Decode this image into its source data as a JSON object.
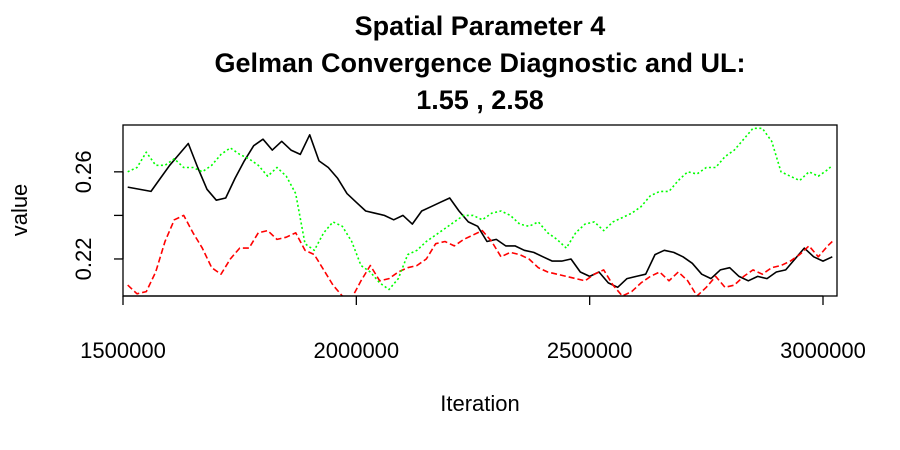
{
  "chart_data": {
    "type": "line",
    "title_lines": [
      "Spatial Parameter 4",
      "Gelman Convergence Diagnostic and UL:",
      "1.55 ,  2.58"
    ],
    "xlabel": "Iteration",
    "ylabel": "value",
    "xlim": [
      1500000,
      3030000
    ],
    "ylim": [
      0.203,
      0.2815
    ],
    "x_ticks": [
      1500000,
      2000000,
      2500000,
      3000000
    ],
    "x_tick_labels": [
      "1500000",
      "2000000",
      "2500000",
      "3000000"
    ],
    "y_ticks": [
      0.22,
      0.24,
      0.26
    ],
    "y_tick_labels": [
      "0.22",
      "",
      "0.26"
    ],
    "grid": false,
    "legend": "none",
    "series": [
      {
        "color": "#000000",
        "dash": "none",
        "points": [
          [
            1510000,
            0.253
          ],
          [
            1560000,
            0.251
          ],
          [
            1580000,
            0.257
          ],
          [
            1600000,
            0.263
          ],
          [
            1620000,
            0.268
          ],
          [
            1640000,
            0.273
          ],
          [
            1660000,
            0.262
          ],
          [
            1680000,
            0.252
          ],
          [
            1700000,
            0.247
          ],
          [
            1720000,
            0.248
          ],
          [
            1740000,
            0.257
          ],
          [
            1760000,
            0.265
          ],
          [
            1780000,
            0.272
          ],
          [
            1800000,
            0.275
          ],
          [
            1820000,
            0.27
          ],
          [
            1840000,
            0.274
          ],
          [
            1860000,
            0.27
          ],
          [
            1880000,
            0.268
          ],
          [
            1900000,
            0.277
          ],
          [
            1920000,
            0.265
          ],
          [
            1940000,
            0.262
          ],
          [
            1960000,
            0.257
          ],
          [
            1980000,
            0.25
          ],
          [
            2000000,
            0.246
          ],
          [
            2020000,
            0.242
          ],
          [
            2040000,
            0.241
          ],
          [
            2060000,
            0.24
          ],
          [
            2080000,
            0.238
          ],
          [
            2100000,
            0.24
          ],
          [
            2120000,
            0.236
          ],
          [
            2140000,
            0.242
          ],
          [
            2160000,
            0.244
          ],
          [
            2180000,
            0.246
          ],
          [
            2200000,
            0.248
          ],
          [
            2220000,
            0.242
          ],
          [
            2240000,
            0.237
          ],
          [
            2260000,
            0.235
          ],
          [
            2280000,
            0.228
          ],
          [
            2300000,
            0.229
          ],
          [
            2320000,
            0.226
          ],
          [
            2340000,
            0.226
          ],
          [
            2360000,
            0.224
          ],
          [
            2380000,
            0.223
          ],
          [
            2400000,
            0.221
          ],
          [
            2420000,
            0.219
          ],
          [
            2440000,
            0.219
          ],
          [
            2460000,
            0.22
          ],
          [
            2480000,
            0.214
          ],
          [
            2500000,
            0.212
          ],
          [
            2520000,
            0.214
          ],
          [
            2540000,
            0.209
          ],
          [
            2560000,
            0.207
          ],
          [
            2580000,
            0.211
          ],
          [
            2600000,
            0.212
          ],
          [
            2620000,
            0.213
          ],
          [
            2640000,
            0.222
          ],
          [
            2660000,
            0.224
          ],
          [
            2680000,
            0.223
          ],
          [
            2700000,
            0.221
          ],
          [
            2720000,
            0.218
          ],
          [
            2740000,
            0.213
          ],
          [
            2760000,
            0.211
          ],
          [
            2780000,
            0.215
          ],
          [
            2800000,
            0.216
          ],
          [
            2820000,
            0.212
          ],
          [
            2840000,
            0.21
          ],
          [
            2860000,
            0.212
          ],
          [
            2880000,
            0.211
          ],
          [
            2900000,
            0.214
          ],
          [
            2920000,
            0.215
          ],
          [
            2940000,
            0.22
          ],
          [
            2960000,
            0.225
          ],
          [
            2980000,
            0.221
          ],
          [
            3000000,
            0.219
          ],
          [
            3020000,
            0.221
          ]
        ]
      },
      {
        "color": "#ff0000",
        "dash": "dashed",
        "points": [
          [
            1510000,
            0.208
          ],
          [
            1530000,
            0.204
          ],
          [
            1550000,
            0.205
          ],
          [
            1570000,
            0.214
          ],
          [
            1590000,
            0.228
          ],
          [
            1610000,
            0.238
          ],
          [
            1630000,
            0.24
          ],
          [
            1650000,
            0.232
          ],
          [
            1670000,
            0.225
          ],
          [
            1690000,
            0.216
          ],
          [
            1710000,
            0.213
          ],
          [
            1730000,
            0.22
          ],
          [
            1750000,
            0.225
          ],
          [
            1770000,
            0.225
          ],
          [
            1790000,
            0.232
          ],
          [
            1810000,
            0.233
          ],
          [
            1830000,
            0.229
          ],
          [
            1850000,
            0.23
          ],
          [
            1870000,
            0.232
          ],
          [
            1890000,
            0.224
          ],
          [
            1910000,
            0.222
          ],
          [
            1930000,
            0.215
          ],
          [
            1950000,
            0.208
          ],
          [
            1970000,
            0.203
          ],
          [
            1990000,
            0.202
          ],
          [
            2010000,
            0.21
          ],
          [
            2030000,
            0.217
          ],
          [
            2050000,
            0.21
          ],
          [
            2070000,
            0.211
          ],
          [
            2090000,
            0.214
          ],
          [
            2110000,
            0.216
          ],
          [
            2130000,
            0.217
          ],
          [
            2150000,
            0.22
          ],
          [
            2170000,
            0.227
          ],
          [
            2190000,
            0.228
          ],
          [
            2210000,
            0.226
          ],
          [
            2230000,
            0.229
          ],
          [
            2250000,
            0.231
          ],
          [
            2270000,
            0.233
          ],
          [
            2290000,
            0.228
          ],
          [
            2310000,
            0.221
          ],
          [
            2330000,
            0.223
          ],
          [
            2350000,
            0.222
          ],
          [
            2370000,
            0.22
          ],
          [
            2390000,
            0.216
          ],
          [
            2410000,
            0.214
          ],
          [
            2430000,
            0.213
          ],
          [
            2450000,
            0.212
          ],
          [
            2470000,
            0.211
          ],
          [
            2490000,
            0.21
          ],
          [
            2510000,
            0.213
          ],
          [
            2530000,
            0.215
          ],
          [
            2550000,
            0.208
          ],
          [
            2570000,
            0.203
          ],
          [
            2590000,
            0.205
          ],
          [
            2610000,
            0.209
          ],
          [
            2630000,
            0.212
          ],
          [
            2650000,
            0.214
          ],
          [
            2670000,
            0.21
          ],
          [
            2690000,
            0.214
          ],
          [
            2710000,
            0.21
          ],
          [
            2730000,
            0.203
          ],
          [
            2750000,
            0.207
          ],
          [
            2770000,
            0.212
          ],
          [
            2790000,
            0.207
          ],
          [
            2810000,
            0.208
          ],
          [
            2830000,
            0.212
          ],
          [
            2850000,
            0.215
          ],
          [
            2870000,
            0.213
          ],
          [
            2890000,
            0.216
          ],
          [
            2910000,
            0.217
          ],
          [
            2930000,
            0.219
          ],
          [
            2950000,
            0.222
          ],
          [
            2970000,
            0.226
          ],
          [
            2990000,
            0.221
          ],
          [
            3010000,
            0.226
          ],
          [
            3020000,
            0.228
          ]
        ]
      },
      {
        "color": "#00ff00",
        "dash": "dotted",
        "points": [
          [
            1510000,
            0.26
          ],
          [
            1530000,
            0.262
          ],
          [
            1550000,
            0.269
          ],
          [
            1570000,
            0.263
          ],
          [
            1590000,
            0.263
          ],
          [
            1610000,
            0.266
          ],
          [
            1630000,
            0.262
          ],
          [
            1650000,
            0.262
          ],
          [
            1670000,
            0.26
          ],
          [
            1690000,
            0.263
          ],
          [
            1710000,
            0.268
          ],
          [
            1730000,
            0.271
          ],
          [
            1750000,
            0.268
          ],
          [
            1770000,
            0.266
          ],
          [
            1790000,
            0.263
          ],
          [
            1810000,
            0.258
          ],
          [
            1830000,
            0.262
          ],
          [
            1850000,
            0.258
          ],
          [
            1870000,
            0.25
          ],
          [
            1890000,
            0.227
          ],
          [
            1910000,
            0.224
          ],
          [
            1930000,
            0.232
          ],
          [
            1950000,
            0.237
          ],
          [
            1970000,
            0.235
          ],
          [
            1990000,
            0.228
          ],
          [
            2010000,
            0.217
          ],
          [
            2030000,
            0.214
          ],
          [
            2050000,
            0.209
          ],
          [
            2070000,
            0.206
          ],
          [
            2090000,
            0.211
          ],
          [
            2110000,
            0.222
          ],
          [
            2130000,
            0.224
          ],
          [
            2150000,
            0.228
          ],
          [
            2170000,
            0.231
          ],
          [
            2190000,
            0.234
          ],
          [
            2210000,
            0.237
          ],
          [
            2230000,
            0.24
          ],
          [
            2250000,
            0.24
          ],
          [
            2270000,
            0.238
          ],
          [
            2290000,
            0.241
          ],
          [
            2310000,
            0.242
          ],
          [
            2330000,
            0.24
          ],
          [
            2350000,
            0.236
          ],
          [
            2370000,
            0.235
          ],
          [
            2390000,
            0.237
          ],
          [
            2410000,
            0.232
          ],
          [
            2430000,
            0.229
          ],
          [
            2450000,
            0.225
          ],
          [
            2470000,
            0.232
          ],
          [
            2490000,
            0.236
          ],
          [
            2510000,
            0.237
          ],
          [
            2530000,
            0.233
          ],
          [
            2550000,
            0.237
          ],
          [
            2570000,
            0.239
          ],
          [
            2590000,
            0.241
          ],
          [
            2610000,
            0.244
          ],
          [
            2630000,
            0.249
          ],
          [
            2650000,
            0.251
          ],
          [
            2670000,
            0.251
          ],
          [
            2690000,
            0.256
          ],
          [
            2710000,
            0.26
          ],
          [
            2730000,
            0.259
          ],
          [
            2750000,
            0.262
          ],
          [
            2770000,
            0.262
          ],
          [
            2790000,
            0.267
          ],
          [
            2810000,
            0.27
          ],
          [
            2830000,
            0.275
          ],
          [
            2850000,
            0.28
          ],
          [
            2870000,
            0.28
          ],
          [
            2890000,
            0.274
          ],
          [
            2910000,
            0.26
          ],
          [
            2930000,
            0.258
          ],
          [
            2950000,
            0.256
          ],
          [
            2970000,
            0.26
          ],
          [
            2990000,
            0.258
          ],
          [
            3010000,
            0.261
          ],
          [
            3020000,
            0.263
          ]
        ]
      }
    ]
  }
}
